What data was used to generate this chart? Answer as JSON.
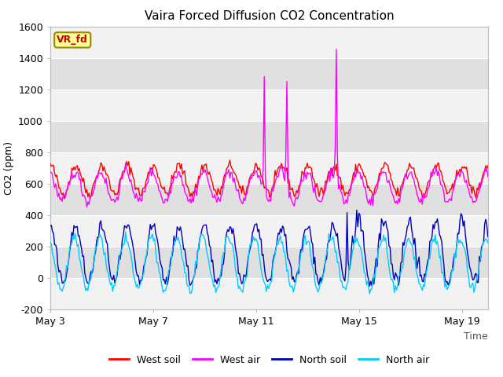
{
  "title": "Vaira Forced Diffusion CO2 Concentration",
  "xlabel": "Time",
  "ylabel": "CO2 (ppm)",
  "ylim": [
    -200,
    1600
  ],
  "yticks": [
    -200,
    0,
    200,
    400,
    600,
    800,
    1000,
    1200,
    1400,
    1600
  ],
  "xtick_labels": [
    "May 3",
    "May 7",
    "May 11",
    "May 15",
    "May 19"
  ],
  "legend_labels": [
    "West soil",
    "West air",
    "North soil",
    "North air"
  ],
  "legend_colors": [
    "#ff0000",
    "#ff00ff",
    "#0000bb",
    "#00ccff"
  ],
  "label_box_text": "VR_fd",
  "label_box_bg": "#ffff99",
  "label_box_edge": "#998800",
  "label_box_text_color": "#cc0000",
  "fig_bg": "#ffffff",
  "plot_bg_light": "#f2f2f2",
  "plot_bg_dark": "#e0e0e0",
  "title_fontsize": 11,
  "axis_fontsize": 9,
  "tick_fontsize": 9,
  "n_days": 17,
  "pts_per_day": 24,
  "xtick_positions": [
    0,
    4,
    8,
    12,
    16
  ]
}
